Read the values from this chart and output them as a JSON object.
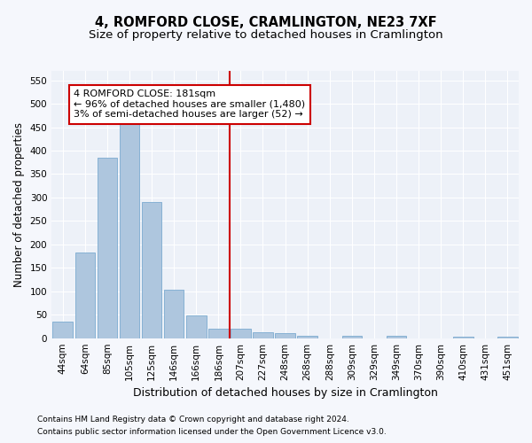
{
  "title": "4, ROMFORD CLOSE, CRAMLINGTON, NE23 7XF",
  "subtitle": "Size of property relative to detached houses in Cramlington",
  "xlabel": "Distribution of detached houses by size in Cramlington",
  "ylabel": "Number of detached properties",
  "footnote1": "Contains HM Land Registry data © Crown copyright and database right 2024.",
  "footnote2": "Contains public sector information licensed under the Open Government Licence v3.0.",
  "bar_labels": [
    "44sqm",
    "64sqm",
    "85sqm",
    "105sqm",
    "125sqm",
    "146sqm",
    "166sqm",
    "186sqm",
    "207sqm",
    "227sqm",
    "248sqm",
    "268sqm",
    "288sqm",
    "309sqm",
    "329sqm",
    "349sqm",
    "370sqm",
    "390sqm",
    "410sqm",
    "431sqm",
    "451sqm"
  ],
  "bar_values": [
    35,
    183,
    385,
    457,
    290,
    104,
    48,
    20,
    20,
    13,
    10,
    5,
    0,
    5,
    0,
    5,
    0,
    0,
    3,
    0,
    3
  ],
  "bar_color": "#aec6de",
  "bar_edge_color": "#7baad0",
  "property_line_color": "#cc0000",
  "annotation_text": "4 ROMFORD CLOSE: 181sqm\n← 96% of detached houses are smaller (1,480)\n3% of semi-detached houses are larger (52) →",
  "annotation_box_color": "#cc0000",
  "ylim": [
    0,
    570
  ],
  "yticks": [
    0,
    50,
    100,
    150,
    200,
    250,
    300,
    350,
    400,
    450,
    500,
    550
  ],
  "background_color": "#edf1f8",
  "grid_color": "#ffffff",
  "fig_bg_color": "#f5f7fc",
  "title_fontsize": 10.5,
  "subtitle_fontsize": 9.5,
  "xlabel_fontsize": 9,
  "ylabel_fontsize": 8.5,
  "tick_fontsize": 7.5,
  "annotation_fontsize": 8,
  "footnote_fontsize": 6.5
}
